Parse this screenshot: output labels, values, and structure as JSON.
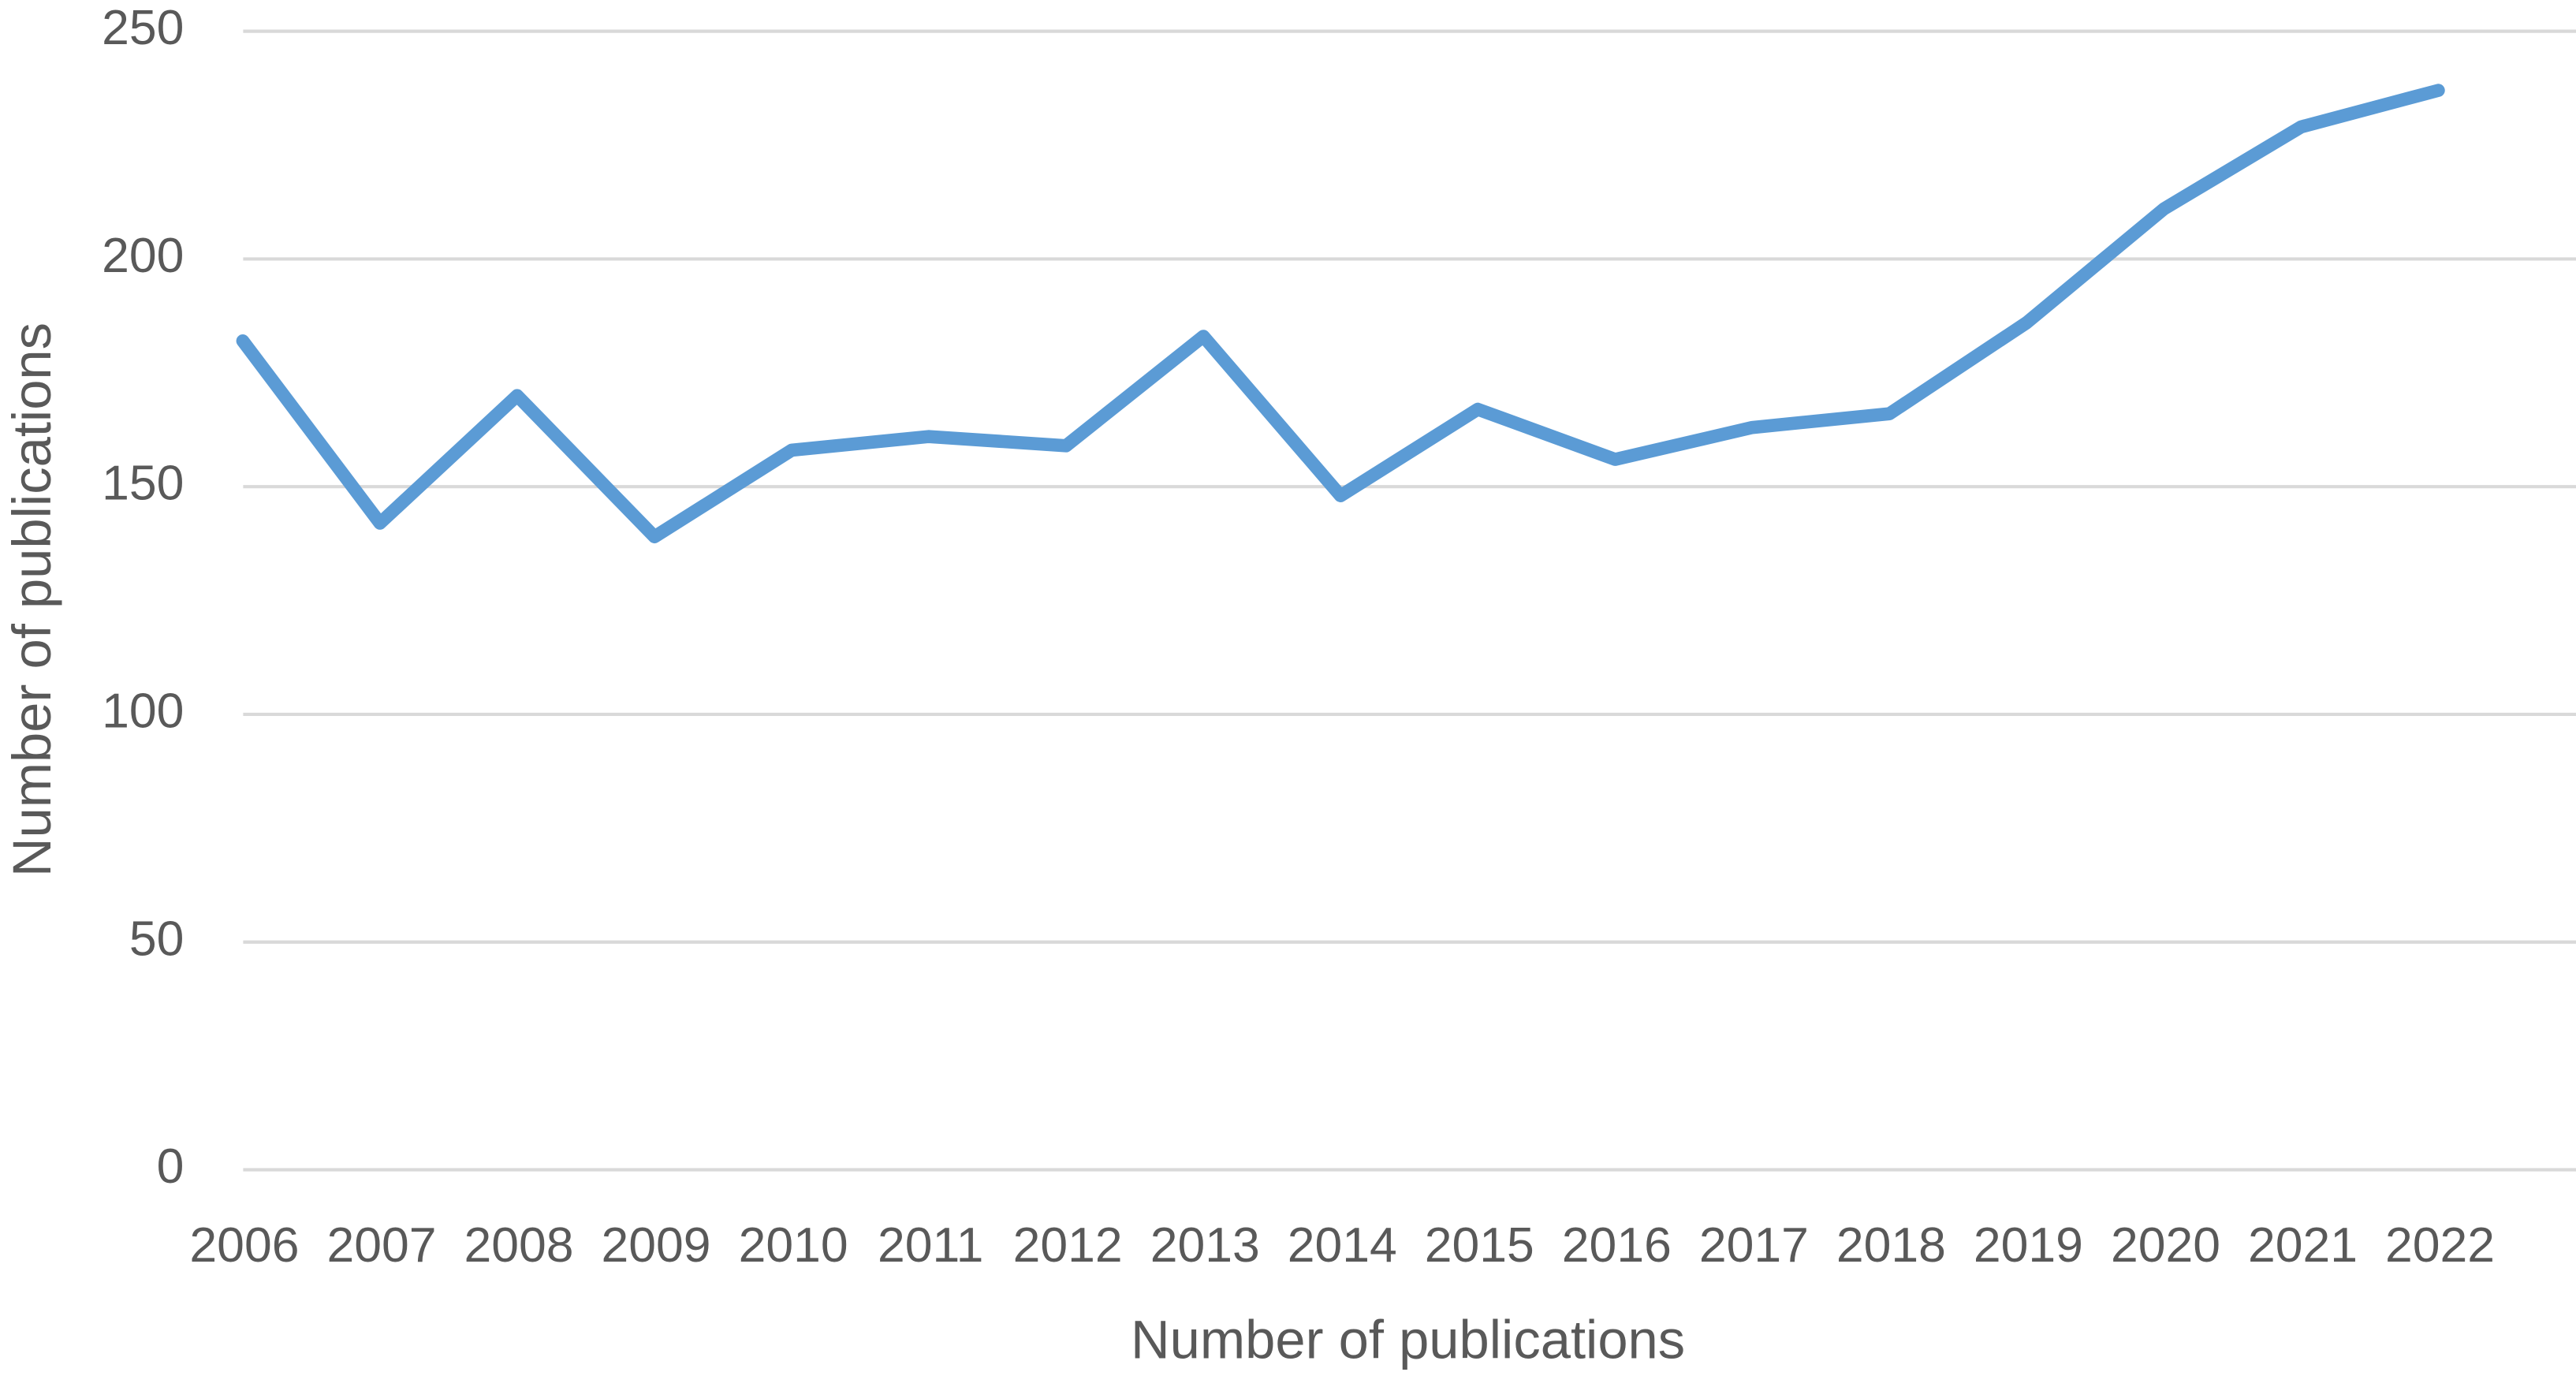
{
  "chart_data": {
    "type": "line",
    "x_label": "Number of publications",
    "y_label": "Number of publications",
    "categories": [
      "2006",
      "2007",
      "2008",
      "2009",
      "2010",
      "2011",
      "2012",
      "2013",
      "2014",
      "2015",
      "2016",
      "2017",
      "2018",
      "2019",
      "2020",
      "2021",
      "2022"
    ],
    "series": [
      {
        "name": "Number of publications",
        "color": "#5b9bd5",
        "values": [
          182,
          142,
          170,
          139,
          158,
          161,
          159,
          183,
          148,
          167,
          156,
          163,
          166,
          186,
          211,
          229,
          237
        ]
      }
    ],
    "ylim": [
      0,
      250
    ],
    "yticks": [
      0,
      50,
      100,
      150,
      200,
      250
    ],
    "grid": true,
    "legend": false
  }
}
